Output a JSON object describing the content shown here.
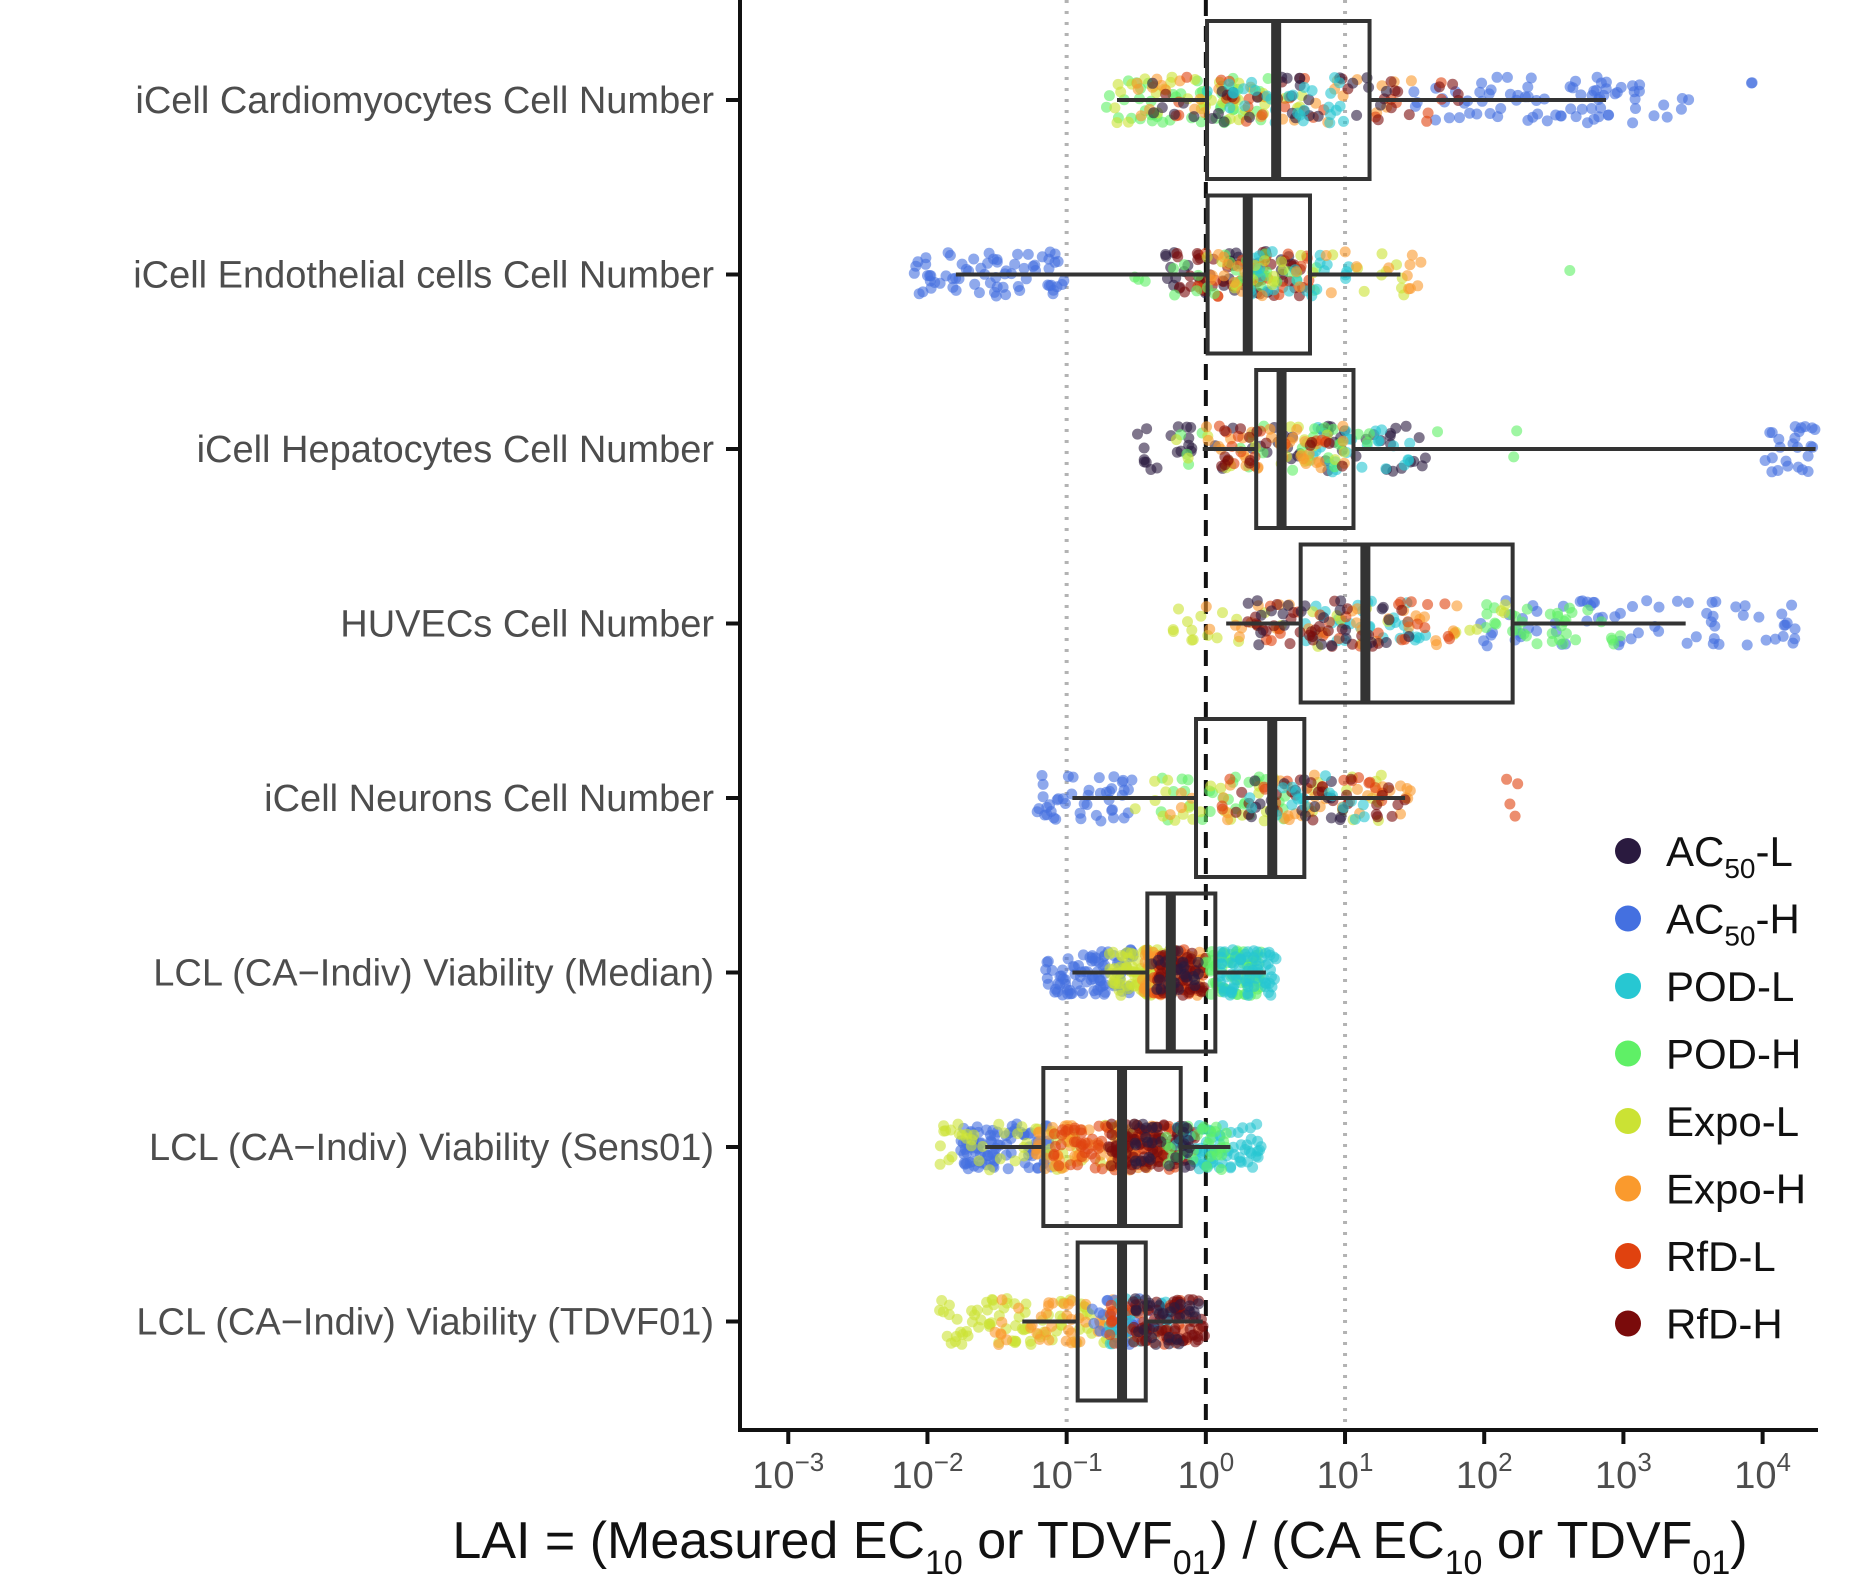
{
  "chart_data": {
    "type": "boxplot-jitter",
    "title": "",
    "xlabel": {
      "parts": [
        {
          "t": "LAI = (Measured EC"
        },
        {
          "t": "10",
          "sub": true
        },
        {
          "t": " or TDVF"
        },
        {
          "t": "01",
          "sub": true
        },
        {
          "t": ") / (CA EC"
        },
        {
          "t": "10",
          "sub": true
        },
        {
          "t": " or TDVF"
        },
        {
          "t": "01",
          "sub": true
        },
        {
          "t": ")"
        }
      ]
    },
    "x_scale": "log10",
    "xlim": [
      0.00045,
      25000
    ],
    "x_ticks": [
      {
        "value": 0.001,
        "base": "10",
        "exp": "−3"
      },
      {
        "value": 0.01,
        "base": "10",
        "exp": "−2"
      },
      {
        "value": 0.1,
        "base": "10",
        "exp": "−1"
      },
      {
        "value": 1,
        "base": "10",
        "exp": "0"
      },
      {
        "value": 10,
        "base": "10",
        "exp": "1"
      },
      {
        "value": 100,
        "base": "10",
        "exp": "2"
      },
      {
        "value": 1000,
        "base": "10",
        "exp": "3"
      },
      {
        "value": 10000,
        "base": "10",
        "exp": "4"
      }
    ],
    "reference_lines": [
      {
        "value": 0.1,
        "style": "dotted"
      },
      {
        "value": 1,
        "style": "dashed"
      },
      {
        "value": 10,
        "style": "dotted"
      }
    ],
    "categories": [
      "iCell Cardiomyocytes Cell Number",
      "iCell Endothelial cells Cell Number",
      "iCell Hepatocytes Cell Number",
      "HUVECs Cell Number",
      "iCell Neurons Cell Number",
      "LCL (CA−Indiv) Viability (Median)",
      "LCL (CA−Indiv) Viability (Sens01)",
      "LCL (CA−Indiv) Viability (TDVF01)"
    ],
    "boxes": [
      {
        "whisker_low": 0.23,
        "q1": 1.02,
        "median": 3.2,
        "q3": 15,
        "whisker_high": 750
      },
      {
        "whisker_low": 0.016,
        "q1": 1.03,
        "median": 2.0,
        "q3": 5.6,
        "whisker_high": 25
      },
      {
        "whisker_low": 0.95,
        "q1": 2.3,
        "median": 3.5,
        "q3": 11.5,
        "whisker_high": 24000
      },
      {
        "whisker_low": 1.4,
        "q1": 4.8,
        "median": 14,
        "q3": 160,
        "whisker_high": 2800
      },
      {
        "whisker_low": 0.11,
        "q1": 0.85,
        "median": 3.0,
        "q3": 5.1,
        "whisker_high": 27
      },
      {
        "whisker_low": 0.11,
        "q1": 0.38,
        "median": 0.56,
        "q3": 1.17,
        "whisker_high": 2.7
      },
      {
        "whisker_low": 0.026,
        "q1": 0.068,
        "median": 0.25,
        "q3": 0.66,
        "whisker_high": 1.5
      },
      {
        "whisker_low": 0.048,
        "q1": 0.12,
        "median": 0.25,
        "q3": 0.37,
        "whisker_high": 0.95
      }
    ],
    "series": [
      {
        "name": "AC50-L",
        "label_main": "AC",
        "label_sub": "50",
        "label_tail": "-L",
        "color": "#2a1a3f"
      },
      {
        "name": "AC50-H",
        "label_main": "AC",
        "label_sub": "50",
        "label_tail": "-H",
        "color": "#4470e0"
      },
      {
        "name": "POD-L",
        "label_main": "POD-L",
        "label_sub": "",
        "label_tail": "",
        "color": "#27c7d2"
      },
      {
        "name": "POD-H",
        "label_main": "POD-H",
        "label_sub": "",
        "label_tail": "",
        "color": "#5ff066"
      },
      {
        "name": "Expo-L",
        "label_main": "Expo-L",
        "label_sub": "",
        "label_tail": "",
        "color": "#cbe234"
      },
      {
        "name": "Expo-H",
        "label_main": "Expo-H",
        "label_sub": "",
        "label_tail": "",
        "color": "#fa9a2d"
      },
      {
        "name": "RfD-L",
        "label_main": "RfD-L",
        "label_sub": "",
        "label_tail": "",
        "color": "#e0420f"
      },
      {
        "name": "RfD-H",
        "label_main": "RfD-H",
        "label_sub": "",
        "label_tail": "",
        "color": "#7a0b0b"
      }
    ],
    "point_clusters": [
      {
        "row": 0,
        "series": "AC50-H",
        "range": [
          30,
          3000
        ],
        "n": 80
      },
      {
        "row": 0,
        "series": "AC50-H",
        "range": [
          8000,
          12000
        ],
        "n": 2
      },
      {
        "row": 0,
        "series": "POD-H",
        "range": [
          0.18,
          3
        ],
        "n": 50
      },
      {
        "row": 0,
        "series": "Expo-L",
        "range": [
          0.2,
          5
        ],
        "n": 40
      },
      {
        "row": 0,
        "series": "Expo-H",
        "range": [
          0.3,
          50
        ],
        "n": 30
      },
      {
        "row": 0,
        "series": "RfD-L",
        "range": [
          0.3,
          60
        ],
        "n": 25
      },
      {
        "row": 0,
        "series": "RfD-H",
        "range": [
          0.5,
          80
        ],
        "n": 20
      },
      {
        "row": 0,
        "series": "AC50-L",
        "range": [
          0.3,
          30
        ],
        "n": 30
      },
      {
        "row": 0,
        "series": "POD-L",
        "range": [
          1,
          10
        ],
        "n": 30
      },
      {
        "row": 1,
        "series": "AC50-H",
        "range": [
          0.008,
          0.1
        ],
        "n": 70
      },
      {
        "row": 1,
        "series": "AC50-L",
        "range": [
          0.5,
          5
        ],
        "n": 35
      },
      {
        "row": 1,
        "series": "RfD-H",
        "range": [
          0.6,
          5
        ],
        "n": 40
      },
      {
        "row": 1,
        "series": "RfD-L",
        "range": [
          0.8,
          6
        ],
        "n": 25
      },
      {
        "row": 1,
        "series": "POD-H",
        "range": [
          0.3,
          8
        ],
        "n": 30
      },
      {
        "row": 1,
        "series": "POD-L",
        "range": [
          2,
          12
        ],
        "n": 25
      },
      {
        "row": 1,
        "series": "Expo-L",
        "range": [
          0.5,
          30
        ],
        "n": 25
      },
      {
        "row": 1,
        "series": "Expo-H",
        "range": [
          1,
          40
        ],
        "n": 25
      },
      {
        "row": 1,
        "series": "POD-H",
        "range": [
          400,
          450
        ],
        "n": 1
      },
      {
        "row": 2,
        "series": "AC50-L",
        "range": [
          0.3,
          50
        ],
        "n": 60
      },
      {
        "row": 2,
        "series": "POD-L",
        "range": [
          5,
          30
        ],
        "n": 25
      },
      {
        "row": 2,
        "series": "POD-H",
        "range": [
          0.5,
          15
        ],
        "n": 25
      },
      {
        "row": 2,
        "series": "Expo-L",
        "range": [
          0.5,
          10
        ],
        "n": 20
      },
      {
        "row": 2,
        "series": "Expo-H",
        "range": [
          1,
          10
        ],
        "n": 35
      },
      {
        "row": 2,
        "series": "RfD-L",
        "range": [
          1,
          8
        ],
        "n": 15
      },
      {
        "row": 2,
        "series": "RfD-H",
        "range": [
          1,
          10
        ],
        "n": 15
      },
      {
        "row": 2,
        "series": "AC50-H",
        "range": [
          10000,
          25000
        ],
        "n": 25
      },
      {
        "row": 2,
        "series": "POD-H",
        "range": [
          20,
          500
        ],
        "n": 3
      },
      {
        "row": 3,
        "series": "AC50-H",
        "range": [
          80,
          20000
        ],
        "n": 70
      },
      {
        "row": 3,
        "series": "POD-H",
        "range": [
          100,
          1000
        ],
        "n": 35
      },
      {
        "row": 3,
        "series": "POD-L",
        "range": [
          5,
          40
        ],
        "n": 35
      },
      {
        "row": 3,
        "series": "Expo-L",
        "range": [
          0.5,
          150
        ],
        "n": 30
      },
      {
        "row": 3,
        "series": "Expo-H",
        "range": [
          1,
          100
        ],
        "n": 30
      },
      {
        "row": 3,
        "series": "RfD-L",
        "range": [
          2,
          60
        ],
        "n": 25
      },
      {
        "row": 3,
        "series": "RfD-H",
        "range": [
          2,
          30
        ],
        "n": 30
      },
      {
        "row": 3,
        "series": "AC50-L",
        "range": [
          2,
          30
        ],
        "n": 25
      },
      {
        "row": 4,
        "series": "AC50-H",
        "range": [
          0.06,
          0.3
        ],
        "n": 45
      },
      {
        "row": 4,
        "series": "POD-H",
        "range": [
          0.4,
          4
        ],
        "n": 30
      },
      {
        "row": 4,
        "series": "Expo-L",
        "range": [
          0.3,
          20
        ],
        "n": 35
      },
      {
        "row": 4,
        "series": "Expo-H",
        "range": [
          0.5,
          30
        ],
        "n": 35
      },
      {
        "row": 4,
        "series": "RfD-L",
        "range": [
          1,
          20
        ],
        "n": 20
      },
      {
        "row": 4,
        "series": "RfD-L",
        "range": [
          100,
          180
        ],
        "n": 4
      },
      {
        "row": 4,
        "series": "RfD-H",
        "range": [
          1.5,
          30
        ],
        "n": 25
      },
      {
        "row": 4,
        "series": "AC50-L",
        "range": [
          2,
          10
        ],
        "n": 20
      },
      {
        "row": 4,
        "series": "POD-L",
        "range": [
          2,
          15
        ],
        "n": 20
      },
      {
        "row": 5,
        "series": "AC50-H",
        "range": [
          0.07,
          0.3
        ],
        "n": 90
      },
      {
        "row": 5,
        "series": "Expo-L",
        "range": [
          0.2,
          0.6
        ],
        "n": 80
      },
      {
        "row": 5,
        "series": "Expo-H",
        "range": [
          0.35,
          1
        ],
        "n": 70
      },
      {
        "row": 5,
        "series": "RfD-L",
        "range": [
          0.4,
          1
        ],
        "n": 50
      },
      {
        "row": 5,
        "series": "RfD-H",
        "range": [
          0.45,
          1
        ],
        "n": 50
      },
      {
        "row": 5,
        "series": "POD-H",
        "range": [
          1,
          2.5
        ],
        "n": 70
      },
      {
        "row": 5,
        "series": "POD-L",
        "range": [
          1.2,
          3.2
        ],
        "n": 70
      },
      {
        "row": 5,
        "series": "AC50-L",
        "range": [
          0.4,
          0.9
        ],
        "n": 25
      },
      {
        "row": 6,
        "series": "AC50-H",
        "range": [
          0.017,
          0.08
        ],
        "n": 90
      },
      {
        "row": 6,
        "series": "Expo-L",
        "range": [
          0.012,
          0.3
        ],
        "n": 60
      },
      {
        "row": 6,
        "series": "Expo-H",
        "range": [
          0.06,
          0.5
        ],
        "n": 80
      },
      {
        "row": 6,
        "series": "RfD-L",
        "range": [
          0.08,
          0.6
        ],
        "n": 80
      },
      {
        "row": 6,
        "series": "RfD-H",
        "range": [
          0.2,
          0.9
        ],
        "n": 80
      },
      {
        "row": 6,
        "series": "POD-L",
        "range": [
          0.6,
          2.5
        ],
        "n": 70
      },
      {
        "row": 6,
        "series": "POD-H",
        "range": [
          0.5,
          1.5
        ],
        "n": 30
      },
      {
        "row": 6,
        "series": "AC50-L",
        "range": [
          0.3,
          0.8
        ],
        "n": 30
      },
      {
        "row": 7,
        "series": "Expo-L",
        "range": [
          0.012,
          0.2
        ],
        "n": 80
      },
      {
        "row": 7,
        "series": "Expo-H",
        "range": [
          0.03,
          0.3
        ],
        "n": 50
      },
      {
        "row": 7,
        "series": "AC50-H",
        "range": [
          0.15,
          0.5
        ],
        "n": 40
      },
      {
        "row": 7,
        "series": "POD-L",
        "range": [
          0.2,
          0.6
        ],
        "n": 30
      },
      {
        "row": 7,
        "series": "RfD-L",
        "range": [
          0.2,
          0.9
        ],
        "n": 40
      },
      {
        "row": 7,
        "series": "RfD-H",
        "range": [
          0.3,
          1
        ],
        "n": 60
      },
      {
        "row": 7,
        "series": "AC50-L",
        "range": [
          0.3,
          0.9
        ],
        "n": 30
      }
    ],
    "grid": false,
    "legend_position": "right-bottom inside"
  }
}
